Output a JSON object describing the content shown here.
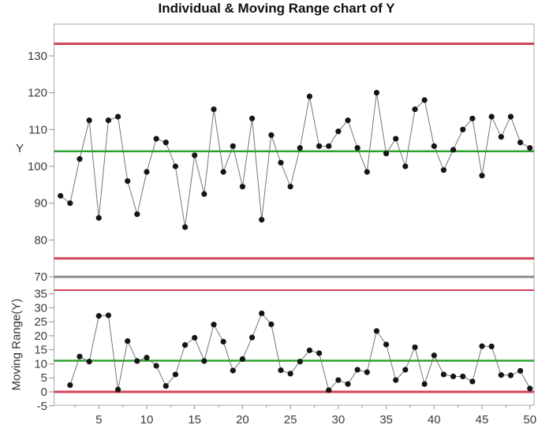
{
  "title": "Individual & Moving Range chart of Y",
  "colors": {
    "limit_red": "#d2455b",
    "center_green": "#2ea12e",
    "separator_gray": "#8a8a8a",
    "series_line": "#757575",
    "marker_black": "#151515",
    "axis_border": "#ababab",
    "tick_mark": "#8f8f8f",
    "tick_text": "#3b3b3b"
  },
  "x_axis": {
    "ticks": [
      5,
      10,
      15,
      20,
      25,
      30,
      35,
      40,
      45,
      50
    ],
    "range": [
      1,
      50
    ]
  },
  "chart_data": [
    {
      "type": "line",
      "panel": "individuals",
      "title": "Individual & Moving Range chart of Y",
      "ylabel": "Y",
      "x": [
        1,
        2,
        3,
        4,
        5,
        6,
        7,
        8,
        9,
        10,
        11,
        12,
        13,
        14,
        15,
        16,
        17,
        18,
        19,
        20,
        21,
        22,
        23,
        24,
        25,
        26,
        27,
        28,
        29,
        30,
        31,
        32,
        33,
        34,
        35,
        36,
        37,
        38,
        39,
        40,
        41,
        42,
        43,
        44,
        45,
        46,
        47,
        48,
        49,
        50
      ],
      "values": [
        92,
        90,
        102,
        112.5,
        86,
        112.5,
        113.5,
        96,
        87,
        98.5,
        107.5,
        106.5,
        100,
        83.5,
        103,
        92.5,
        115.5,
        98.5,
        105.5,
        94.5,
        113,
        85.5,
        108.5,
        101,
        94.5,
        105,
        119,
        105.5,
        105.5,
        109.5,
        112.5,
        105,
        98.5,
        120,
        103.5,
        107.5,
        100,
        115.5,
        118,
        105.5,
        99,
        104.5,
        110,
        113,
        97.5,
        113.5,
        108,
        113.5,
        106.5,
        105
      ],
      "yticks": [
        130,
        120,
        110,
        100,
        90,
        80,
        70
      ],
      "ylim": [
        68,
        138
      ],
      "lines": {
        "ucl": 133.3,
        "cl": 104.1,
        "lcl": 75,
        "separator": 70
      },
      "legend": "none",
      "grid": false
    },
    {
      "type": "line",
      "panel": "moving_range",
      "ylabel": "Moving Range(Y)",
      "x": [
        2,
        3,
        4,
        5,
        6,
        7,
        8,
        9,
        10,
        11,
        12,
        13,
        14,
        15,
        16,
        17,
        18,
        19,
        20,
        21,
        22,
        23,
        24,
        25,
        26,
        27,
        28,
        29,
        30,
        31,
        32,
        33,
        34,
        35,
        36,
        37,
        38,
        39,
        40,
        41,
        42,
        43,
        44,
        45,
        46,
        47,
        48,
        49,
        50
      ],
      "values": [
        2.4,
        12.6,
        10.8,
        27.1,
        27.3,
        0.8,
        18.1,
        11,
        12.2,
        9.3,
        2.1,
        6.2,
        16.7,
        19.3,
        11,
        24,
        17.9,
        7.6,
        11.7,
        19.4,
        28,
        24.1,
        7.7,
        6.5,
        10.8,
        14.8,
        13.8,
        0.6,
        4.2,
        2.8,
        7.9,
        7,
        21.7,
        16.9,
        4.2,
        7.9,
        15.9,
        2.8,
        13,
        6.2,
        5.5,
        5.5,
        3.7,
        16.3,
        16.2,
        6,
        5.9,
        7.5,
        1.2
      ],
      "yticks": [
        35,
        30,
        25,
        20,
        15,
        10,
        5,
        0,
        -5
      ],
      "ylim": [
        -5,
        36.5
      ],
      "lines": {
        "ucl": 36.3,
        "cl": 11.1,
        "lcl": 0
      },
      "legend": "none",
      "grid": false
    }
  ]
}
